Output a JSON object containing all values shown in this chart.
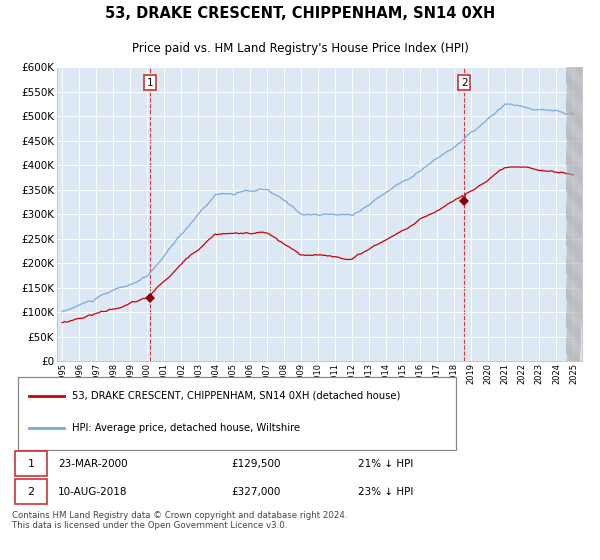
{
  "title": "53, DRAKE CRESCENT, CHIPPENHAM, SN14 0XH",
  "subtitle": "Price paid vs. HM Land Registry's House Price Index (HPI)",
  "hpi_color": "#7aaadd",
  "price_color": "#cc0000",
  "background_color": "#dde8f5",
  "ylim": [
    0,
    600000
  ],
  "yticks": [
    0,
    50000,
    100000,
    150000,
    200000,
    250000,
    300000,
    350000,
    400000,
    450000,
    500000,
    550000,
    600000
  ],
  "x_start_year": 1995,
  "x_end_year": 2025,
  "transaction1_date": "23-MAR-2000",
  "transaction1_price": 129500,
  "transaction2_date": "10-AUG-2018",
  "transaction2_price": 327000,
  "legend_line1": "53, DRAKE CRESCENT, CHIPPENHAM, SN14 0XH (detached house)",
  "legend_line2": "HPI: Average price, detached house, Wiltshire",
  "footer": "Contains HM Land Registry data © Crown copyright and database right 2024.\nThis data is licensed under the Open Government Licence v3.0."
}
